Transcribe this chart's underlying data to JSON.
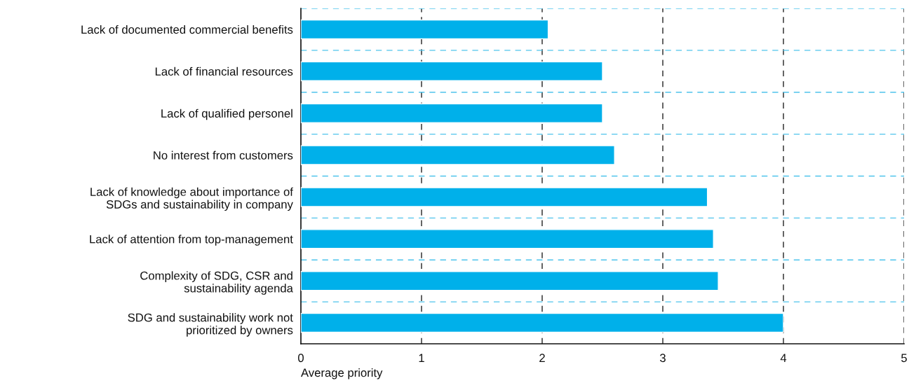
{
  "chart_data": {
    "type": "bar",
    "orientation": "horizontal",
    "xlabel": "Average priority",
    "categories": [
      "Lack of documented commercial benefits",
      "Lack of financial resources",
      "Lack of qualified personel",
      "No interest from customers",
      "Lack of knowledge about importance of\nSDGs and sustainability in company",
      "Lack of attention from top-management",
      "Complexity of SDG, CSR and\nsustainability agenda",
      "SDG and sustainability work not\nprioritized by owners"
    ],
    "values": [
      2.05,
      2.5,
      2.5,
      2.6,
      3.37,
      3.42,
      3.46,
      4.0
    ],
    "color": "#00b0ea",
    "xlim": [
      0,
      5
    ],
    "xticks": [
      0,
      1,
      2,
      3,
      4,
      5
    ],
    "grid": true,
    "line_style": "dashed"
  }
}
